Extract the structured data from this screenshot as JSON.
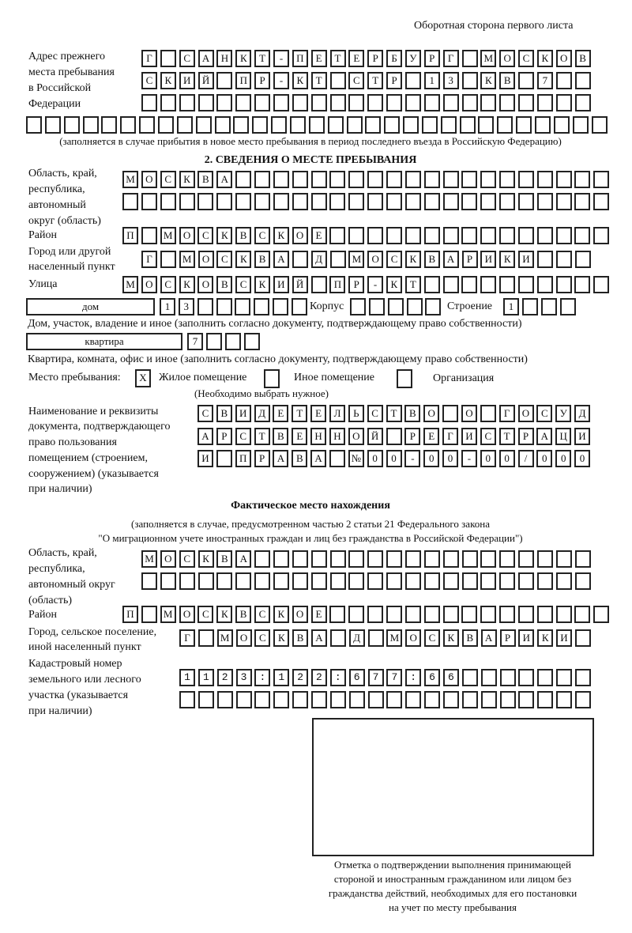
{
  "header": {
    "page_note": "Оборотная сторона первого листа"
  },
  "prev_address": {
    "label": [
      "Адрес прежнего",
      "места пребывания",
      "в Российской",
      "Федерации"
    ],
    "rows": [
      "Г САНКТ-ПЕТЕРБУРГ МОСКОВ",
      "СКИЙ ПР-КТ СТР 13 КВ 7",
      "",
      ""
    ],
    "note": "(заполняется в случае прибытия в новое место пребывания в период последнего въезда в Российскую Федерацию)"
  },
  "section2": {
    "title": "2. СВЕДЕНИЯ О МЕСТЕ ПРЕБЫВАНИЯ",
    "region_label": [
      "Область, край,",
      "республика,",
      "автономный",
      "округ (область)"
    ],
    "region_rows": [
      "МОСКВА",
      ""
    ],
    "district_label": "Район",
    "district": "П МОСКВСКОЕ",
    "city_label": [
      "Город или другой",
      "населенный пункт"
    ],
    "city": "Г МОСКВА Д МОСКВАРИКИ",
    "street_label": "Улица",
    "street": "МОСКОВСКИЙ ПР-КТ",
    "house_type": "дом",
    "house": "13",
    "korpus_label": "Корпус",
    "korpus": "",
    "building_label": "Строение",
    "building": "1",
    "house_note": "Дом, участок, владение и иное (заполнить согласно документу, подтверждающему право собственности)",
    "apt_type": "квартира",
    "apt": "7",
    "apt_note": "Квартира, комната, офис и иное (заполнить согласно документу, подтверждающему право собственности)",
    "stay_label": "Место пребывания:",
    "stay_options": [
      {
        "label": "Жилое помещение",
        "checked": true,
        "mark": "X"
      },
      {
        "label": "Иное помещение",
        "checked": false,
        "mark": ""
      },
      {
        "label": "Организация",
        "checked": false,
        "mark": ""
      }
    ],
    "stay_note": "(Необходимо выбрать нужное)",
    "doc_label": [
      "Наименование и реквизиты",
      "документа, подтверждающего",
      "право пользования",
      "помещением (строением,",
      "сооружением) (указывается",
      "при наличии)"
    ],
    "doc_rows": [
      "СВИДЕТЕЛЬСТВО О ГОСУД",
      "АРСТВЕННОЙ РЕГИСТРАЦИ",
      "И ПРАВА №00-00-00/000"
    ]
  },
  "actual": {
    "title": "Фактическое место нахождения",
    "note": [
      "(заполняется в случае, предусмотренном частью 2 статьи 21 Федерального закона",
      "\"О миграционном учете иностранных граждан и лиц без гражданства в Российской Федерации\")"
    ],
    "region_label": [
      "Область, край,",
      "республика,",
      "автономный округ",
      "(область)"
    ],
    "region_rows": [
      "МОСКВА",
      ""
    ],
    "district_label": "Район",
    "district": "П МОСКВСКОЕ",
    "city_label": [
      "Город, сельское поселение,",
      "иной населенный пункт"
    ],
    "city": "Г МОСКВА Д МОСКВАРИКИ",
    "cadastre_label": [
      "Кадастровый номер",
      "земельного или лесного",
      "участка (указывается",
      "при наличии)"
    ],
    "cadastre_rows": [
      "1123:122:677:66",
      ""
    ]
  },
  "confirmation": {
    "caption": [
      "Отметка о подтверждении выполнения принимающей",
      "стороной и иностранным гражданином или лицом без",
      "гражданства действий, необходимых для его постановки",
      "на учет по месту пребывания"
    ]
  }
}
